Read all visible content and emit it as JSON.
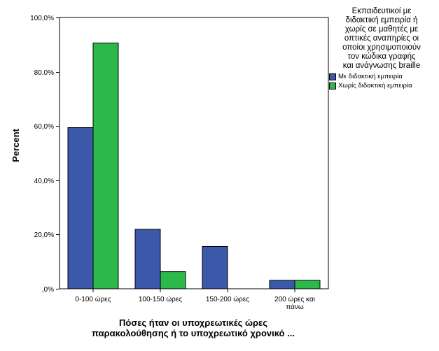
{
  "chart_data": {
    "type": "bar",
    "title": "",
    "xlabel_lines": [
      "Πόσες ήταν οι υποχρεωτικές ώρες",
      "παρακολούθησης ή το υποχρεωτικό χρονικό ..."
    ],
    "ylabel": "Percent",
    "ylim": [
      0,
      100
    ],
    "yticks": [
      0,
      20,
      40,
      60,
      80,
      100
    ],
    "ytick_labels": [
      ",0%",
      "20,0%",
      "40,0%",
      "60,0%",
      "80,0%",
      "100,0%"
    ],
    "grid": false,
    "legend_position": "right",
    "categories": [
      [
        "0-100 ώρες"
      ],
      [
        "100-150 ώρες"
      ],
      [
        "150-200 ώρες"
      ],
      [
        "200 ώρες και",
        "πάνω"
      ]
    ],
    "series": [
      {
        "name": "Με διδακτική εμπειρία",
        "color": "#3c58a8",
        "values": [
          59.4,
          21.9,
          15.6,
          3.1
        ]
      },
      {
        "name": "Χωρίς διδακτική εμπειρία",
        "color": "#2db84a",
        "values": [
          90.6,
          6.3,
          0.0,
          3.1
        ]
      }
    ],
    "legend_title_lines": [
      "Εκπαιδευτικοί με",
      "διδακτική εμπειρία ή",
      "χωρίς σε μαθητές με",
      "οπτικές αναπηρίες οι",
      "οποίοι χρησιμοποιούν",
      "τον κώδικα γραφής",
      "και ανάγνωσης braille"
    ]
  }
}
